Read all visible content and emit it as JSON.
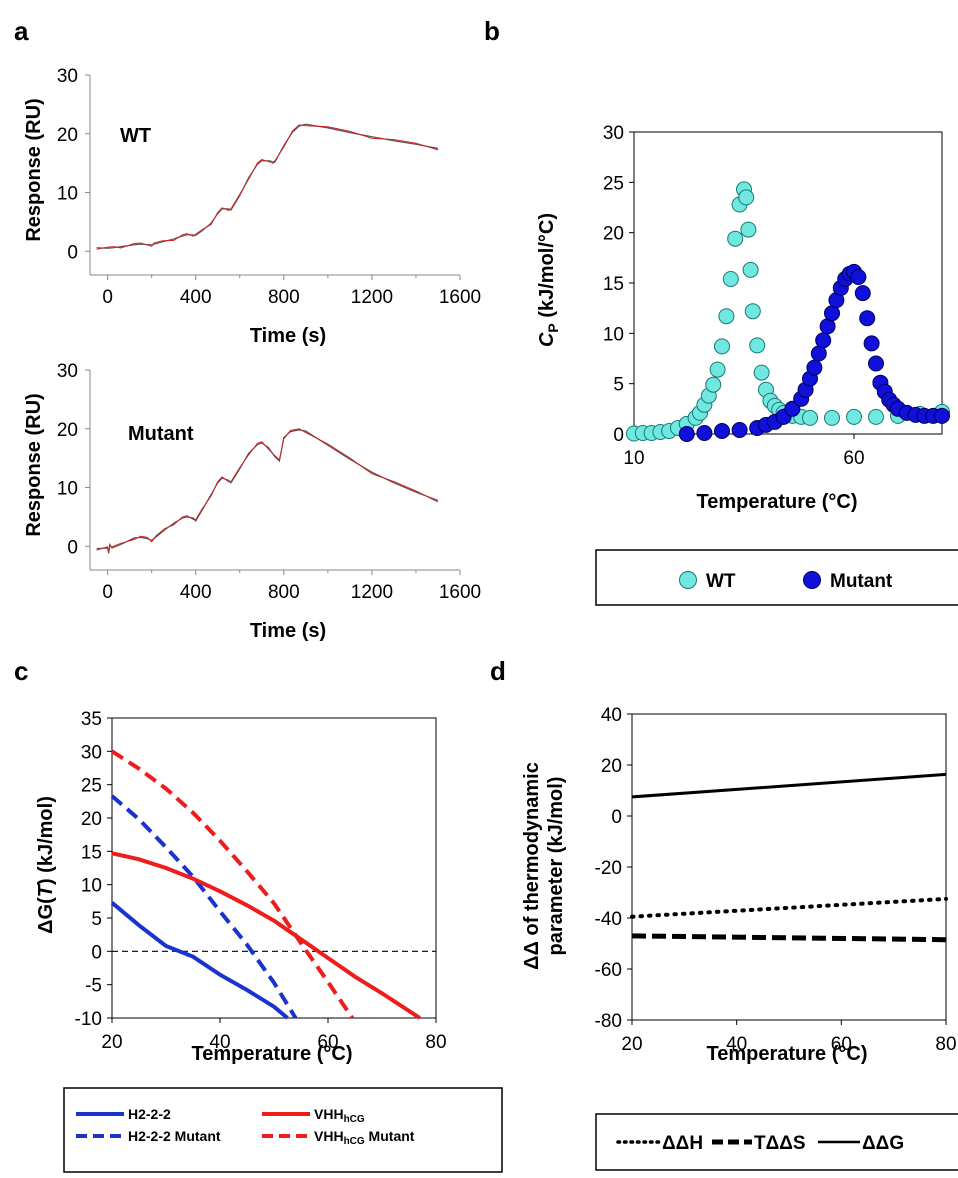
{
  "panels": {
    "a": "a",
    "b": "b",
    "c": "c",
    "d": "d"
  },
  "colors": {
    "wt_fill": "#70e8e0",
    "mutant_fill": "#1010d8",
    "spr_fit": "#d02020",
    "h222": "#1a33cc",
    "vhh": "#ee1c1c"
  },
  "chart_data": [
    {
      "id": "a-wt",
      "type": "line",
      "annotation": "WT",
      "xlabel": "Time (s)",
      "ylabel": "Response (RU)",
      "xlim": [
        -80,
        1600
      ],
      "ylim": [
        -2,
        30
      ],
      "xticks": [
        0,
        400,
        800,
        1200,
        1600
      ],
      "yticks": [
        0,
        10,
        20,
        30
      ],
      "series": [
        {
          "x": [
            -50,
            0,
            30,
            60,
            120,
            150,
            200,
            210,
            250,
            300,
            340,
            360,
            390,
            400,
            430,
            470,
            500,
            520,
            550,
            560,
            600,
            640,
            680,
            700,
            740,
            750,
            760,
            800,
            840,
            870,
            900,
            1000,
            1100,
            1200,
            1300,
            1400,
            1500
          ],
          "y": [
            0.6,
            0.5,
            0.6,
            0.8,
            1.1,
            1.2,
            1.1,
            1.2,
            1.6,
            2.1,
            2.6,
            2.8,
            2.8,
            2.7,
            3.5,
            4.8,
            6.4,
            7.2,
            7.2,
            7.0,
            9.5,
            12.5,
            14.8,
            15.4,
            15.4,
            15.0,
            15.2,
            18.0,
            20.3,
            21.3,
            21.6,
            21.0,
            20.2,
            19.5,
            18.8,
            18.2,
            17.5
          ]
        }
      ]
    },
    {
      "id": "a-mutant",
      "type": "line",
      "annotation": "Mutant",
      "xlabel": "Time (s)",
      "ylabel": "Response (RU)",
      "xlim": [
        -80,
        1600
      ],
      "ylim": [
        -2,
        30
      ],
      "xticks": [
        0,
        400,
        800,
        1200,
        1600
      ],
      "yticks": [
        0,
        10,
        20,
        30
      ],
      "series": [
        {
          "x": [
            -50,
            0,
            5,
            10,
            20,
            60,
            120,
            150,
            180,
            200,
            220,
            260,
            300,
            340,
            360,
            390,
            400,
            430,
            470,
            500,
            520,
            550,
            560,
            600,
            640,
            680,
            700,
            730,
            760,
            780,
            800,
            830,
            870,
            900,
            1000,
            1100,
            1200,
            1300,
            1400,
            1500
          ],
          "y": [
            -0.4,
            -0.3,
            -1.2,
            0.3,
            -0.3,
            0.3,
            1.4,
            1.5,
            1.3,
            1.0,
            1.6,
            2.8,
            3.9,
            4.8,
            5.0,
            4.8,
            4.3,
            6.2,
            8.8,
            10.8,
            11.6,
            11.2,
            10.8,
            13.2,
            15.8,
            17.3,
            17.6,
            16.8,
            15.2,
            14.5,
            18.5,
            19.5,
            19.8,
            19.6,
            17.2,
            14.8,
            12.6,
            10.8,
            9.2,
            7.8
          ]
        }
      ]
    },
    {
      "id": "b",
      "type": "scatter",
      "xlabel": "Temperature (°C)",
      "ylabel_main": "C",
      "ylabel_sub": "P",
      "ylabel_rest": " (kJ/mol/°C)",
      "xlim": [
        10,
        80
      ],
      "ylim": [
        0,
        30
      ],
      "xticks": [
        10,
        60
      ],
      "yticks": [
        0,
        5,
        10,
        15,
        20,
        25,
        30
      ],
      "legend_position": "bottom",
      "series": [
        {
          "name": "WT",
          "x": [
            10,
            12,
            14,
            16,
            18,
            20,
            22,
            24,
            25,
            26,
            27,
            28,
            29,
            30,
            31,
            32,
            33,
            34,
            35,
            35.5,
            36,
            36.5,
            37,
            38,
            39,
            40,
            41,
            42,
            43,
            44,
            45,
            46,
            48,
            50,
            55,
            60,
            65,
            70,
            75,
            80
          ],
          "y": [
            0.05,
            0.1,
            0.1,
            0.2,
            0.3,
            0.6,
            1.0,
            1.6,
            2.1,
            2.9,
            3.8,
            4.9,
            6.4,
            8.7,
            11.7,
            15.4,
            19.4,
            22.8,
            24.3,
            23.5,
            20.3,
            16.3,
            12.2,
            8.8,
            6.1,
            4.4,
            3.3,
            2.8,
            2.4,
            2.1,
            1.9,
            1.8,
            1.7,
            1.6,
            1.6,
            1.7,
            1.7,
            1.8,
            2.0,
            2.2
          ]
        },
        {
          "name": "Mutant",
          "x": [
            22,
            26,
            30,
            34,
            38,
            40,
            42,
            44,
            46,
            48,
            49,
            50,
            51,
            52,
            53,
            54,
            55,
            56,
            57,
            58,
            59,
            60,
            61,
            62,
            63,
            64,
            65,
            66,
            67,
            68,
            69,
            70,
            72,
            74,
            76,
            78,
            80
          ],
          "y": [
            0.0,
            0.1,
            0.3,
            0.4,
            0.6,
            0.9,
            1.2,
            1.7,
            2.5,
            3.5,
            4.4,
            5.5,
            6.6,
            8.0,
            9.3,
            10.7,
            12.0,
            13.3,
            14.5,
            15.4,
            15.9,
            16.1,
            15.6,
            14.0,
            11.5,
            9.0,
            7.0,
            5.1,
            4.2,
            3.4,
            2.9,
            2.5,
            2.1,
            1.9,
            1.8,
            1.8,
            1.8
          ]
        }
      ]
    },
    {
      "id": "c",
      "type": "line",
      "xlabel": "Temperature (°C)",
      "ylabel": "ΔG(T) (kJ/mol)",
      "ylabel_parts": [
        "ΔG(",
        "T",
        ") (kJ/mol)"
      ],
      "xlim": [
        20,
        80
      ],
      "ylim": [
        -10,
        35
      ],
      "xticks": [
        20,
        40,
        60,
        80
      ],
      "yticks": [
        -10,
        -5,
        0,
        5,
        10,
        15,
        20,
        25,
        30,
        35
      ],
      "legend_position": "bottom",
      "series": [
        {
          "name": "H2-2-2",
          "style": "solid",
          "color": "#1a33cc",
          "x": [
            20,
            25,
            30,
            35,
            40,
            45,
            50,
            52.5
          ],
          "y": [
            7.3,
            3.9,
            0.8,
            -0.8,
            -3.5,
            -5.8,
            -8.3,
            -10
          ]
        },
        {
          "name": "H2-2-2 Mutant",
          "style": "dashed",
          "color": "#1a33cc",
          "x": [
            20,
            25,
            30,
            35,
            40,
            45,
            50,
            54
          ],
          "y": [
            23.3,
            19.8,
            15.6,
            11.2,
            6.0,
            1.0,
            -4.7,
            -10
          ]
        },
        {
          "name": "VHH",
          "name_sub": "hCG",
          "style": "solid",
          "color": "#ee1c1c",
          "x": [
            20,
            25,
            30,
            35,
            40,
            45,
            50,
            55,
            60,
            65,
            70,
            77
          ],
          "y": [
            14.7,
            13.8,
            12.5,
            10.9,
            9.0,
            6.9,
            4.6,
            1.8,
            -1.0,
            -3.8,
            -6.3,
            -10
          ]
        },
        {
          "name": "VHH",
          "name_sub": "hCG",
          "name_suffix": " Mutant",
          "style": "dashed",
          "color": "#ee1c1c",
          "x": [
            20,
            25,
            30,
            35,
            40,
            45,
            50,
            55,
            60,
            64.5
          ],
          "y": [
            30.0,
            27.4,
            24.4,
            20.8,
            16.6,
            12.0,
            7.2,
            1.2,
            -4.6,
            -10
          ]
        }
      ]
    },
    {
      "id": "d",
      "type": "line",
      "xlabel": "Temperature (°C)",
      "ylabel_line1": "ΔΔ of thermodynamic",
      "ylabel_line2": "parameter  (kJ/mol)",
      "xlim": [
        20,
        80
      ],
      "ylim": [
        -80,
        40
      ],
      "xticks": [
        20,
        40,
        60,
        80
      ],
      "yticks": [
        -80,
        -60,
        -40,
        -20,
        0,
        20,
        40
      ],
      "legend_position": "bottom",
      "series": [
        {
          "name": "ΔΔH",
          "style": "dotted",
          "x": [
            20,
            80
          ],
          "y": [
            -39.5,
            -32.5
          ]
        },
        {
          "name": "TΔΔS",
          "style": "dashed",
          "x": [
            20,
            80
          ],
          "y": [
            -47.0,
            -48.5
          ]
        },
        {
          "name": "ΔΔG",
          "style": "solid",
          "x": [
            20,
            80
          ],
          "y": [
            7.5,
            16.3
          ]
        }
      ]
    }
  ]
}
